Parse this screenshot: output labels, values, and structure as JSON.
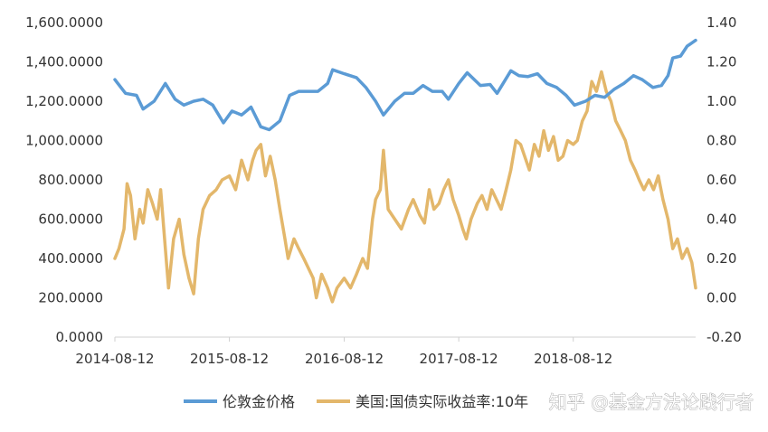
{
  "watermark": "知乎 @基金方法论践行者",
  "chart_data": {
    "type": "line",
    "title": "",
    "x_ticks": [
      "2014-08-12",
      "2015-08-12",
      "2016-08-12",
      "2017-08-12",
      "2018-08-12"
    ],
    "x_range": [
      "2014-08-12",
      "2019-09-06"
    ],
    "y_left": {
      "ticks": [
        "0.0000",
        "200.0000",
        "400.0000",
        "600.0000",
        "800.0000",
        "1,000.0000",
        "1,200.0000",
        "1,400.0000",
        "1,600.0000"
      ],
      "range": [
        0,
        1600
      ]
    },
    "y_right": {
      "ticks": [
        "-0.20",
        "0.00",
        "0.20",
        "0.40",
        "0.60",
        "0.80",
        "1.00",
        "1.20",
        "1.40"
      ],
      "range": [
        -0.2,
        1.4
      ]
    },
    "legend_position": "bottom",
    "grid": false,
    "series": [
      {
        "name": "伦敦金价格",
        "axis": "left",
        "color": "#5b9bd5",
        "points": [
          [
            "2014-08-12",
            1310
          ],
          [
            "2014-09-15",
            1240
          ],
          [
            "2014-10-20",
            1230
          ],
          [
            "2014-11-10",
            1160
          ],
          [
            "2014-12-15",
            1200
          ],
          [
            "2015-01-20",
            1290
          ],
          [
            "2015-02-20",
            1210
          ],
          [
            "2015-03-20",
            1180
          ],
          [
            "2015-04-20",
            1200
          ],
          [
            "2015-05-20",
            1210
          ],
          [
            "2015-06-20",
            1180
          ],
          [
            "2015-07-24",
            1090
          ],
          [
            "2015-08-20",
            1150
          ],
          [
            "2015-09-20",
            1130
          ],
          [
            "2015-10-20",
            1170
          ],
          [
            "2015-11-20",
            1070
          ],
          [
            "2015-12-17",
            1055
          ],
          [
            "2016-01-20",
            1100
          ],
          [
            "2016-02-20",
            1230
          ],
          [
            "2016-03-20",
            1250
          ],
          [
            "2016-04-20",
            1250
          ],
          [
            "2016-05-20",
            1250
          ],
          [
            "2016-06-20",
            1290
          ],
          [
            "2016-07-06",
            1360
          ],
          [
            "2016-08-12",
            1340
          ],
          [
            "2016-09-20",
            1320
          ],
          [
            "2016-10-20",
            1270
          ],
          [
            "2016-11-20",
            1200
          ],
          [
            "2016-12-15",
            1130
          ],
          [
            "2017-01-20",
            1200
          ],
          [
            "2017-02-20",
            1240
          ],
          [
            "2017-03-20",
            1240
          ],
          [
            "2017-04-20",
            1280
          ],
          [
            "2017-05-20",
            1250
          ],
          [
            "2017-06-20",
            1250
          ],
          [
            "2017-07-10",
            1210
          ],
          [
            "2017-08-12",
            1290
          ],
          [
            "2017-09-08",
            1345
          ],
          [
            "2017-10-20",
            1280
          ],
          [
            "2017-11-20",
            1285
          ],
          [
            "2017-12-12",
            1240
          ],
          [
            "2018-01-25",
            1355
          ],
          [
            "2018-02-20",
            1330
          ],
          [
            "2018-03-20",
            1325
          ],
          [
            "2018-04-20",
            1340
          ],
          [
            "2018-05-20",
            1290
          ],
          [
            "2018-06-20",
            1270
          ],
          [
            "2018-07-20",
            1230
          ],
          [
            "2018-08-16",
            1180
          ],
          [
            "2018-09-20",
            1200
          ],
          [
            "2018-10-20",
            1230
          ],
          [
            "2018-11-20",
            1220
          ],
          [
            "2018-12-20",
            1260
          ],
          [
            "2019-01-20",
            1290
          ],
          [
            "2019-02-20",
            1330
          ],
          [
            "2019-03-20",
            1310
          ],
          [
            "2019-04-23",
            1270
          ],
          [
            "2019-05-20",
            1280
          ],
          [
            "2019-06-10",
            1330
          ],
          [
            "2019-06-25",
            1420
          ],
          [
            "2019-07-20",
            1430
          ],
          [
            "2019-08-10",
            1480
          ],
          [
            "2019-09-06",
            1510
          ]
        ]
      },
      {
        "name": "美国:国债实际收益率:10年",
        "axis": "right",
        "color": "#e3b76b",
        "points": [
          [
            "2014-08-12",
            0.2
          ],
          [
            "2014-08-25",
            0.25
          ],
          [
            "2014-09-10",
            0.35
          ],
          [
            "2014-09-20",
            0.58
          ],
          [
            "2014-10-01",
            0.52
          ],
          [
            "2014-10-15",
            0.3
          ],
          [
            "2014-10-30",
            0.45
          ],
          [
            "2014-11-10",
            0.38
          ],
          [
            "2014-11-25",
            0.55
          ],
          [
            "2014-12-10",
            0.48
          ],
          [
            "2014-12-25",
            0.4
          ],
          [
            "2015-01-05",
            0.55
          ],
          [
            "2015-01-20",
            0.25
          ],
          [
            "2015-01-30",
            0.05
          ],
          [
            "2015-02-15",
            0.3
          ],
          [
            "2015-03-05",
            0.4
          ],
          [
            "2015-03-20",
            0.22
          ],
          [
            "2015-04-05",
            0.1
          ],
          [
            "2015-04-20",
            0.02
          ],
          [
            "2015-05-05",
            0.3
          ],
          [
            "2015-05-20",
            0.45
          ],
          [
            "2015-06-10",
            0.52
          ],
          [
            "2015-07-01",
            0.55
          ],
          [
            "2015-07-20",
            0.6
          ],
          [
            "2015-08-12",
            0.62
          ],
          [
            "2015-09-01",
            0.55
          ],
          [
            "2015-09-20",
            0.7
          ],
          [
            "2015-10-10",
            0.6
          ],
          [
            "2015-10-25",
            0.7
          ],
          [
            "2015-11-05",
            0.75
          ],
          [
            "2015-11-20",
            0.78
          ],
          [
            "2015-12-05",
            0.62
          ],
          [
            "2015-12-20",
            0.72
          ],
          [
            "2016-01-05",
            0.6
          ],
          [
            "2016-01-20",
            0.45
          ],
          [
            "2016-02-05",
            0.3
          ],
          [
            "2016-02-15",
            0.2
          ],
          [
            "2016-03-05",
            0.3
          ],
          [
            "2016-03-20",
            0.25
          ],
          [
            "2016-04-05",
            0.2
          ],
          [
            "2016-04-20",
            0.15
          ],
          [
            "2016-05-05",
            0.1
          ],
          [
            "2016-05-15",
            0.0
          ],
          [
            "2016-06-01",
            0.12
          ],
          [
            "2016-06-20",
            0.05
          ],
          [
            "2016-07-05",
            -0.02
          ],
          [
            "2016-07-20",
            0.05
          ],
          [
            "2016-08-12",
            0.1
          ],
          [
            "2016-09-01",
            0.05
          ],
          [
            "2016-09-20",
            0.12
          ],
          [
            "2016-10-10",
            0.2
          ],
          [
            "2016-10-25",
            0.15
          ],
          [
            "2016-11-10",
            0.4
          ],
          [
            "2016-11-20",
            0.5
          ],
          [
            "2016-12-05",
            0.55
          ],
          [
            "2016-12-15",
            0.75
          ],
          [
            "2016-12-30",
            0.45
          ],
          [
            "2017-01-20",
            0.4
          ],
          [
            "2017-02-10",
            0.35
          ],
          [
            "2017-03-05",
            0.45
          ],
          [
            "2017-03-20",
            0.5
          ],
          [
            "2017-04-10",
            0.42
          ],
          [
            "2017-04-25",
            0.38
          ],
          [
            "2017-05-10",
            0.55
          ],
          [
            "2017-05-25",
            0.45
          ],
          [
            "2017-06-10",
            0.48
          ],
          [
            "2017-06-25",
            0.55
          ],
          [
            "2017-07-10",
            0.6
          ],
          [
            "2017-07-25",
            0.5
          ],
          [
            "2017-08-12",
            0.42
          ],
          [
            "2017-08-25",
            0.35
          ],
          [
            "2017-09-05",
            0.3
          ],
          [
            "2017-09-20",
            0.4
          ],
          [
            "2017-10-10",
            0.48
          ],
          [
            "2017-10-25",
            0.52
          ],
          [
            "2017-11-10",
            0.45
          ],
          [
            "2017-11-25",
            0.55
          ],
          [
            "2017-12-10",
            0.5
          ],
          [
            "2017-12-25",
            0.45
          ],
          [
            "2018-01-10",
            0.55
          ],
          [
            "2018-01-25",
            0.65
          ],
          [
            "2018-02-10",
            0.8
          ],
          [
            "2018-02-25",
            0.78
          ],
          [
            "2018-03-10",
            0.72
          ],
          [
            "2018-03-25",
            0.65
          ],
          [
            "2018-04-10",
            0.78
          ],
          [
            "2018-04-25",
            0.72
          ],
          [
            "2018-05-10",
            0.85
          ],
          [
            "2018-05-25",
            0.75
          ],
          [
            "2018-06-10",
            0.82
          ],
          [
            "2018-06-25",
            0.7
          ],
          [
            "2018-07-10",
            0.72
          ],
          [
            "2018-07-25",
            0.8
          ],
          [
            "2018-08-12",
            0.78
          ],
          [
            "2018-08-25",
            0.8
          ],
          [
            "2018-09-10",
            0.9
          ],
          [
            "2018-09-25",
            0.95
          ],
          [
            "2018-10-10",
            1.1
          ],
          [
            "2018-10-25",
            1.05
          ],
          [
            "2018-11-10",
            1.15
          ],
          [
            "2018-11-25",
            1.05
          ],
          [
            "2018-12-10",
            1.0
          ],
          [
            "2018-12-25",
            0.9
          ],
          [
            "2019-01-10",
            0.85
          ],
          [
            "2019-01-25",
            0.8
          ],
          [
            "2019-02-10",
            0.7
          ],
          [
            "2019-02-25",
            0.65
          ],
          [
            "2019-03-10",
            0.6
          ],
          [
            "2019-03-25",
            0.55
          ],
          [
            "2019-04-10",
            0.6
          ],
          [
            "2019-04-25",
            0.55
          ],
          [
            "2019-05-10",
            0.62
          ],
          [
            "2019-05-25",
            0.5
          ],
          [
            "2019-06-10",
            0.4
          ],
          [
            "2019-06-25",
            0.25
          ],
          [
            "2019-07-10",
            0.3
          ],
          [
            "2019-07-25",
            0.2
          ],
          [
            "2019-08-10",
            0.25
          ],
          [
            "2019-08-25",
            0.18
          ],
          [
            "2019-09-06",
            0.05
          ]
        ]
      }
    ]
  }
}
